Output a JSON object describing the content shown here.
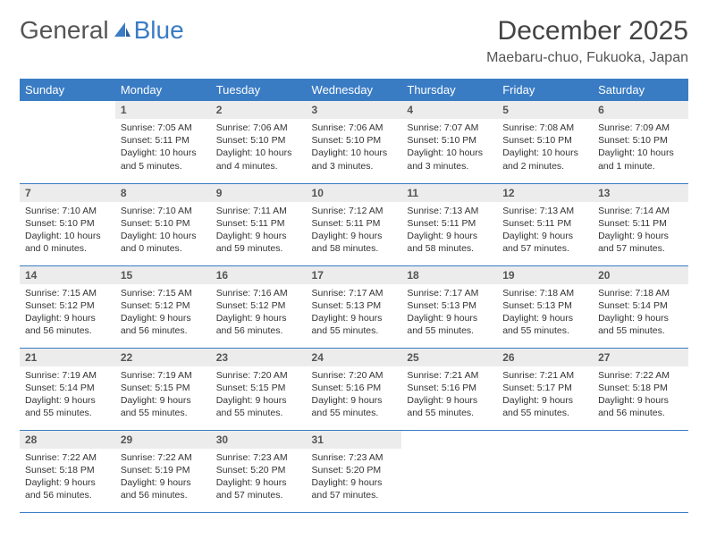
{
  "logo": {
    "text1": "General",
    "text2": "Blue"
  },
  "title": "December 2025",
  "location": "Maebaru-chuo, Fukuoka, Japan",
  "colors": {
    "accent": "#3a7cc4",
    "header_bg": "#3a7cc4",
    "daynum_bg": "#ececec",
    "text": "#333333"
  },
  "weekdays": [
    "Sunday",
    "Monday",
    "Tuesday",
    "Wednesday",
    "Thursday",
    "Friday",
    "Saturday"
  ],
  "cells": [
    {
      "day": "",
      "sunrise": "",
      "sunset": "",
      "daylight": "",
      "empty": true
    },
    {
      "day": "1",
      "sunrise": "Sunrise: 7:05 AM",
      "sunset": "Sunset: 5:11 PM",
      "daylight": "Daylight: 10 hours and 5 minutes."
    },
    {
      "day": "2",
      "sunrise": "Sunrise: 7:06 AM",
      "sunset": "Sunset: 5:10 PM",
      "daylight": "Daylight: 10 hours and 4 minutes."
    },
    {
      "day": "3",
      "sunrise": "Sunrise: 7:06 AM",
      "sunset": "Sunset: 5:10 PM",
      "daylight": "Daylight: 10 hours and 3 minutes."
    },
    {
      "day": "4",
      "sunrise": "Sunrise: 7:07 AM",
      "sunset": "Sunset: 5:10 PM",
      "daylight": "Daylight: 10 hours and 3 minutes."
    },
    {
      "day": "5",
      "sunrise": "Sunrise: 7:08 AM",
      "sunset": "Sunset: 5:10 PM",
      "daylight": "Daylight: 10 hours and 2 minutes."
    },
    {
      "day": "6",
      "sunrise": "Sunrise: 7:09 AM",
      "sunset": "Sunset: 5:10 PM",
      "daylight": "Daylight: 10 hours and 1 minute."
    },
    {
      "day": "7",
      "sunrise": "Sunrise: 7:10 AM",
      "sunset": "Sunset: 5:10 PM",
      "daylight": "Daylight: 10 hours and 0 minutes."
    },
    {
      "day": "8",
      "sunrise": "Sunrise: 7:10 AM",
      "sunset": "Sunset: 5:10 PM",
      "daylight": "Daylight: 10 hours and 0 minutes."
    },
    {
      "day": "9",
      "sunrise": "Sunrise: 7:11 AM",
      "sunset": "Sunset: 5:11 PM",
      "daylight": "Daylight: 9 hours and 59 minutes."
    },
    {
      "day": "10",
      "sunrise": "Sunrise: 7:12 AM",
      "sunset": "Sunset: 5:11 PM",
      "daylight": "Daylight: 9 hours and 58 minutes."
    },
    {
      "day": "11",
      "sunrise": "Sunrise: 7:13 AM",
      "sunset": "Sunset: 5:11 PM",
      "daylight": "Daylight: 9 hours and 58 minutes."
    },
    {
      "day": "12",
      "sunrise": "Sunrise: 7:13 AM",
      "sunset": "Sunset: 5:11 PM",
      "daylight": "Daylight: 9 hours and 57 minutes."
    },
    {
      "day": "13",
      "sunrise": "Sunrise: 7:14 AM",
      "sunset": "Sunset: 5:11 PM",
      "daylight": "Daylight: 9 hours and 57 minutes."
    },
    {
      "day": "14",
      "sunrise": "Sunrise: 7:15 AM",
      "sunset": "Sunset: 5:12 PM",
      "daylight": "Daylight: 9 hours and 56 minutes."
    },
    {
      "day": "15",
      "sunrise": "Sunrise: 7:15 AM",
      "sunset": "Sunset: 5:12 PM",
      "daylight": "Daylight: 9 hours and 56 minutes."
    },
    {
      "day": "16",
      "sunrise": "Sunrise: 7:16 AM",
      "sunset": "Sunset: 5:12 PM",
      "daylight": "Daylight: 9 hours and 56 minutes."
    },
    {
      "day": "17",
      "sunrise": "Sunrise: 7:17 AM",
      "sunset": "Sunset: 5:13 PM",
      "daylight": "Daylight: 9 hours and 55 minutes."
    },
    {
      "day": "18",
      "sunrise": "Sunrise: 7:17 AM",
      "sunset": "Sunset: 5:13 PM",
      "daylight": "Daylight: 9 hours and 55 minutes."
    },
    {
      "day": "19",
      "sunrise": "Sunrise: 7:18 AM",
      "sunset": "Sunset: 5:13 PM",
      "daylight": "Daylight: 9 hours and 55 minutes."
    },
    {
      "day": "20",
      "sunrise": "Sunrise: 7:18 AM",
      "sunset": "Sunset: 5:14 PM",
      "daylight": "Daylight: 9 hours and 55 minutes."
    },
    {
      "day": "21",
      "sunrise": "Sunrise: 7:19 AM",
      "sunset": "Sunset: 5:14 PM",
      "daylight": "Daylight: 9 hours and 55 minutes."
    },
    {
      "day": "22",
      "sunrise": "Sunrise: 7:19 AM",
      "sunset": "Sunset: 5:15 PM",
      "daylight": "Daylight: 9 hours and 55 minutes."
    },
    {
      "day": "23",
      "sunrise": "Sunrise: 7:20 AM",
      "sunset": "Sunset: 5:15 PM",
      "daylight": "Daylight: 9 hours and 55 minutes."
    },
    {
      "day": "24",
      "sunrise": "Sunrise: 7:20 AM",
      "sunset": "Sunset: 5:16 PM",
      "daylight": "Daylight: 9 hours and 55 minutes."
    },
    {
      "day": "25",
      "sunrise": "Sunrise: 7:21 AM",
      "sunset": "Sunset: 5:16 PM",
      "daylight": "Daylight: 9 hours and 55 minutes."
    },
    {
      "day": "26",
      "sunrise": "Sunrise: 7:21 AM",
      "sunset": "Sunset: 5:17 PM",
      "daylight": "Daylight: 9 hours and 55 minutes."
    },
    {
      "day": "27",
      "sunrise": "Sunrise: 7:22 AM",
      "sunset": "Sunset: 5:18 PM",
      "daylight": "Daylight: 9 hours and 56 minutes."
    },
    {
      "day": "28",
      "sunrise": "Sunrise: 7:22 AM",
      "sunset": "Sunset: 5:18 PM",
      "daylight": "Daylight: 9 hours and 56 minutes."
    },
    {
      "day": "29",
      "sunrise": "Sunrise: 7:22 AM",
      "sunset": "Sunset: 5:19 PM",
      "daylight": "Daylight: 9 hours and 56 minutes."
    },
    {
      "day": "30",
      "sunrise": "Sunrise: 7:23 AM",
      "sunset": "Sunset: 5:20 PM",
      "daylight": "Daylight: 9 hours and 57 minutes."
    },
    {
      "day": "31",
      "sunrise": "Sunrise: 7:23 AM",
      "sunset": "Sunset: 5:20 PM",
      "daylight": "Daylight: 9 hours and 57 minutes."
    },
    {
      "day": "",
      "sunrise": "",
      "sunset": "",
      "daylight": "",
      "empty": true
    },
    {
      "day": "",
      "sunrise": "",
      "sunset": "",
      "daylight": "",
      "empty": true
    },
    {
      "day": "",
      "sunrise": "",
      "sunset": "",
      "daylight": "",
      "empty": true
    }
  ]
}
